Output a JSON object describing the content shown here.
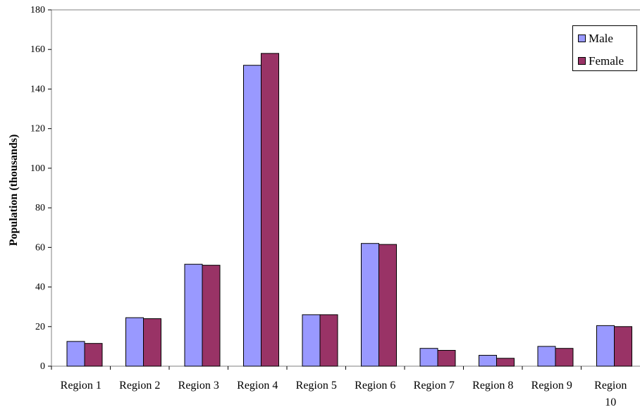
{
  "chart_data": {
    "type": "bar",
    "title": "",
    "xlabel": "",
    "ylabel": "Population (thousands)",
    "ylim": [
      0,
      180
    ],
    "yticks": [
      0,
      20,
      40,
      60,
      80,
      100,
      120,
      140,
      160,
      180
    ],
    "grid": false,
    "legend_position": "top-right",
    "categories": [
      "Region 1",
      "Region 2",
      "Region 3",
      "Region 4",
      "Region 5",
      "Region 6",
      "Region 7",
      "Region 8",
      "Region 9",
      "Region 10"
    ],
    "series": [
      {
        "name": "Male",
        "color": "#9999ff",
        "values": [
          12.5,
          24.5,
          51.5,
          152,
          26,
          62,
          9,
          5.5,
          10,
          20.5
        ]
      },
      {
        "name": "Female",
        "color": "#993366",
        "values": [
          11.5,
          24,
          51,
          158,
          26,
          61.5,
          8,
          4,
          9,
          20
        ]
      }
    ]
  }
}
